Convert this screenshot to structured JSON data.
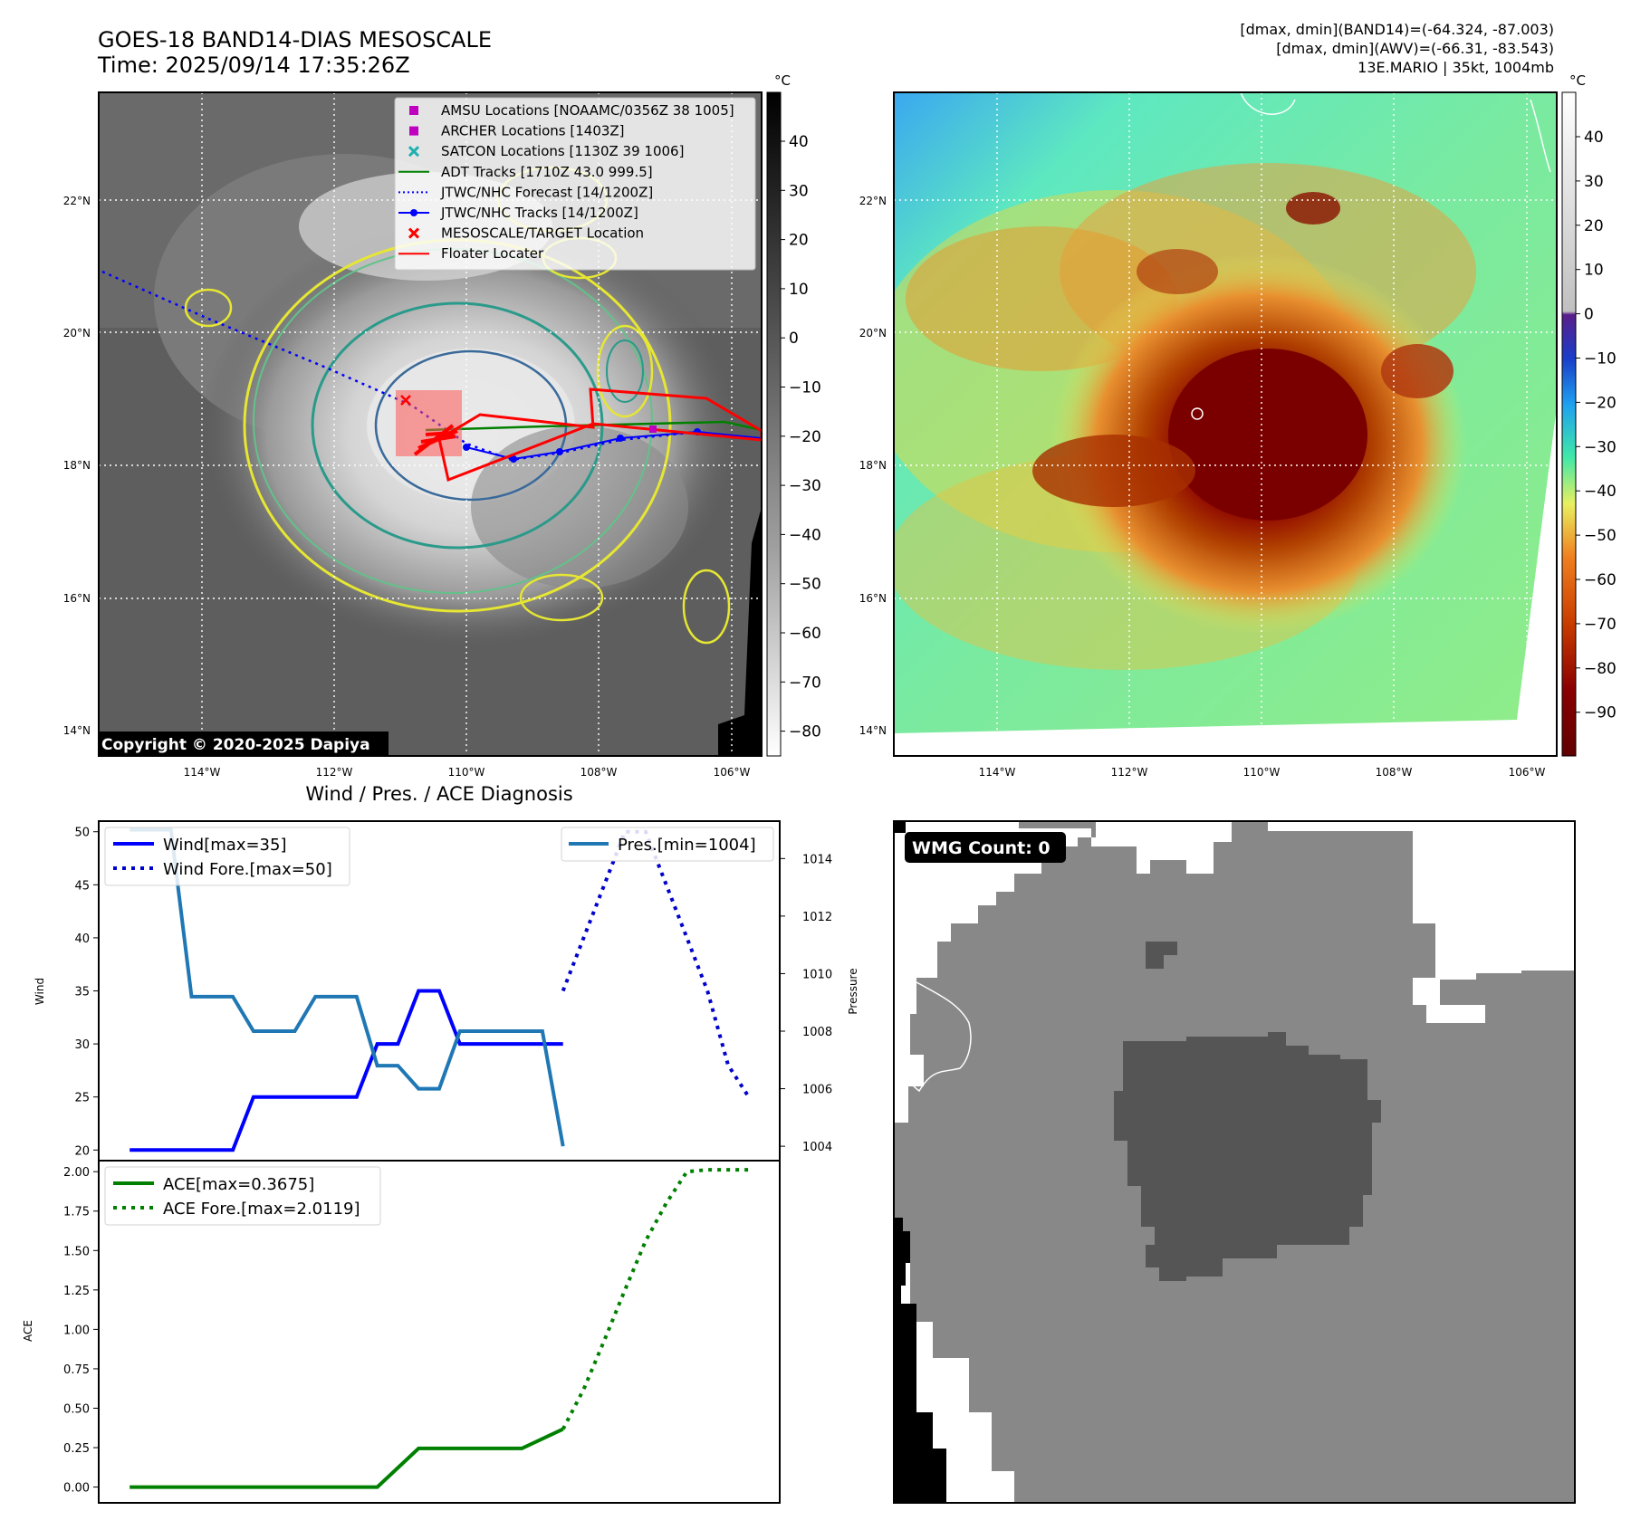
{
  "header": {
    "title_line1": "GOES-18 BAND14-DIAS MESOSCALE",
    "title_line2": "Time: 2025/09/14 17:35:26Z",
    "right_line1": "[dmax, dmin](BAND14)=(-64.324, -87.003)",
    "right_line2": "[dmax, dmin](AWV)=(-66.31, -83.543)",
    "right_line3": "13E.MARIO | 35kt, 1004mb"
  },
  "map": {
    "lat_labels": [
      "22°N",
      "20°N",
      "18°N",
      "16°N",
      "14°N"
    ],
    "lon_labels": [
      "114°W",
      "112°W",
      "110°W",
      "108°W",
      "106°W"
    ],
    "copyright": "Copyright © 2020-2025 Dapiya",
    "legend": [
      {
        "label": "AMSU Locations [NOAAMC/0356Z 38 1005]",
        "marker": "square",
        "color": "#c000c0"
      },
      {
        "label": "ARCHER Locations [1403Z]",
        "marker": "square",
        "color": "#c000c0"
      },
      {
        "label": "SATCON Locations [1130Z 39 1006]",
        "marker": "x",
        "color": "#20b0b0"
      },
      {
        "label": "ADT Tracks [1710Z 43.0 999.5]",
        "marker": "line",
        "color": "#008000"
      },
      {
        "label": "JTWC/NHC Forecast [14/1200Z]",
        "marker": "dotted",
        "color": "#0000ff"
      },
      {
        "label": "JTWC/NHC Tracks [14/1200Z]",
        "marker": "line-dot",
        "color": "#0000ff"
      },
      {
        "label": "MESOSCALE/TARGET Location",
        "marker": "x",
        "color": "#ff0000"
      },
      {
        "label": "Floater Locater",
        "marker": "line",
        "color": "#ff0000"
      }
    ]
  },
  "colorbar_gray": {
    "unit": "°C",
    "ticks": [
      "40",
      "30",
      "20",
      "10",
      "0",
      "−10",
      "−20",
      "−30",
      "−40",
      "−50",
      "−60",
      "−70",
      "−80"
    ]
  },
  "colorbar_color": {
    "unit": "°C",
    "ticks": [
      "40",
      "30",
      "20",
      "10",
      "0",
      "−10",
      "−20",
      "−30",
      "−40",
      "−50",
      "−60",
      "−70",
      "−80",
      "−90"
    ]
  },
  "wmg": {
    "label": "WMG Count: 0"
  },
  "chart_data": [
    {
      "type": "line",
      "title": "Wind / Pres. / ACE Diagnosis",
      "ylabel": "Wind",
      "ylabel_right": "Pressure",
      "ylim": [
        19,
        51
      ],
      "ylim_right": [
        1003.5,
        1015.3
      ],
      "yticks": [
        20,
        25,
        30,
        35,
        40,
        45,
        50
      ],
      "yticks_right": [
        1004,
        1006,
        1008,
        1010,
        1012,
        1014
      ],
      "legend_left": [
        "Wind[max=35]",
        "Wind Fore.[max=50]"
      ],
      "legend_right": [
        "Pres.[min=1004]"
      ],
      "series": [
        {
          "name": "Wind[max=35]",
          "color": "#0000ff",
          "style": "solid",
          "axis": "left",
          "x": [
            0,
            5,
            6,
            11,
            12,
            13,
            14,
            15,
            16,
            21
          ],
          "y": [
            20,
            20,
            25,
            25,
            30,
            30,
            35,
            35,
            30,
            30
          ]
        },
        {
          "name": "Wind Fore.[max=50]",
          "color": "#0000cc",
          "style": "dotted",
          "axis": "left",
          "x": [
            21,
            22,
            23,
            24,
            25,
            26,
            27,
            28,
            29,
            30
          ],
          "y": [
            35,
            40,
            45,
            50,
            50,
            45,
            40,
            35,
            28,
            25
          ]
        },
        {
          "name": "Pres.[min=1004]",
          "color": "#1f77b4",
          "style": "solid",
          "axis": "right",
          "x": [
            0,
            2,
            3,
            5,
            6,
            8,
            9,
            11,
            12,
            13,
            14,
            15,
            16,
            20,
            21
          ],
          "y": [
            1015,
            1015,
            1009.2,
            1009.2,
            1008,
            1008,
            1009.2,
            1009.2,
            1006.8,
            1006.8,
            1006,
            1006,
            1008,
            1008,
            1004
          ]
        }
      ]
    },
    {
      "type": "line",
      "ylabel": "ACE",
      "ylim": [
        -0.1,
        2.07
      ],
      "yticks": [
        0.0,
        0.25,
        0.5,
        0.75,
        1.0,
        1.25,
        1.5,
        1.75,
        2.0
      ],
      "ytick_labels": [
        "0.00",
        "0.25",
        "0.50",
        "0.75",
        "1.00",
        "1.25",
        "1.50",
        "1.75",
        "2.00"
      ],
      "legend": [
        "ACE[max=0.3675]",
        "ACE Fore.[max=2.0119]"
      ],
      "series": [
        {
          "name": "ACE[max=0.3675]",
          "color": "#008000",
          "style": "solid",
          "x": [
            0,
            12,
            14,
            19,
            21
          ],
          "y": [
            0,
            0,
            0.245,
            0.245,
            0.3675
          ]
        },
        {
          "name": "ACE Fore.[max=2.0119]",
          "color": "#008000",
          "style": "dotted",
          "x": [
            21,
            22,
            23,
            24,
            25,
            26,
            27,
            28,
            29,
            30
          ],
          "y": [
            0.3675,
            0.62,
            0.93,
            1.25,
            1.56,
            1.8,
            2.0,
            2.0119,
            2.0119,
            2.0119
          ]
        }
      ]
    }
  ]
}
